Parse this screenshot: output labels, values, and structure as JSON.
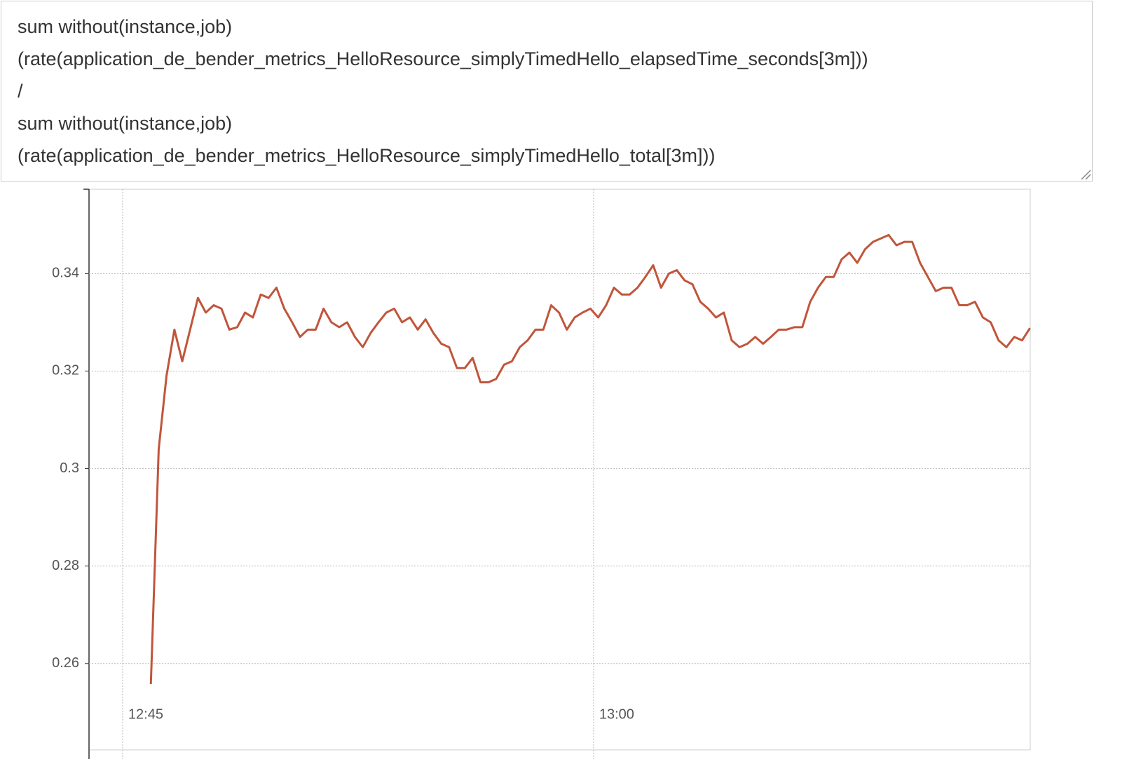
{
  "query_lines": [
    "sum without(instance,job)",
    "(rate(application_de_bender_metrics_HelloResource_simplyTimedHello_elapsedTime_seconds[3m]))",
    "/",
    "sum without(instance,job)",
    "(rate(application_de_bender_metrics_HelloResource_simplyTimedHello_total[3m]))"
  ],
  "chart_data": {
    "type": "line",
    "x": [
      765.9,
      766.15,
      766.4,
      766.65,
      766.9,
      767.15,
      767.4,
      767.65,
      767.9,
      768.15,
      768.4,
      768.65,
      768.9,
      769.15,
      769.4,
      769.65,
      769.9,
      770.15,
      770.4,
      770.65,
      770.9,
      771.15,
      771.4,
      771.65,
      771.9,
      772.15,
      772.4,
      772.65,
      772.9,
      773.15,
      773.4,
      773.65,
      773.9,
      774.15,
      774.4,
      774.65,
      774.9,
      775.15,
      775.4,
      775.65,
      775.9,
      776.15,
      776.4,
      776.65,
      776.9,
      777.15,
      777.4,
      777.65,
      777.9,
      778.15,
      778.4,
      778.65,
      778.9,
      779.15,
      779.4,
      779.65,
      779.9,
      780.15,
      780.4,
      780.65,
      780.9,
      781.15,
      781.4,
      781.65,
      781.9,
      782.15,
      782.4,
      782.65,
      782.9,
      783.15,
      783.4,
      783.65,
      783.9,
      784.15,
      784.4,
      784.65,
      784.9,
      785.15,
      785.4,
      785.65,
      785.9,
      786.15,
      786.4,
      786.65,
      786.9,
      787.15,
      787.4,
      787.65,
      787.9,
      788.15,
      788.4,
      788.65,
      788.9,
      789.15,
      789.4,
      789.65,
      789.9,
      790.15,
      790.4,
      790.65,
      790.9,
      791.15,
      791.4,
      791.65,
      791.9,
      792.15,
      792.4,
      792.65,
      792.9,
      793.15,
      793.4,
      793.65,
      793.9
    ],
    "series": [
      {
        "color": "#c1553b",
        "values": [
          0.2558,
          0.304,
          0.3191,
          0.3285,
          0.322,
          0.3285,
          0.335,
          0.332,
          0.3335,
          0.3328,
          0.3285,
          0.329,
          0.332,
          0.331,
          0.3357,
          0.335,
          0.3371,
          0.3328,
          0.33,
          0.327,
          0.3285,
          0.3285,
          0.3328,
          0.33,
          0.329,
          0.33,
          0.327,
          0.3249,
          0.3278,
          0.33,
          0.332,
          0.3328,
          0.33,
          0.331,
          0.3285,
          0.3306,
          0.3278,
          0.3256,
          0.3249,
          0.3206,
          0.3206,
          0.3227,
          0.3177,
          0.3177,
          0.3184,
          0.3213,
          0.322,
          0.3249,
          0.3263,
          0.3285,
          0.3285,
          0.3335,
          0.332,
          0.3285,
          0.331,
          0.332,
          0.3328,
          0.331,
          0.3335,
          0.3371,
          0.3357,
          0.3357,
          0.3371,
          0.3393,
          0.3417,
          0.3371,
          0.34,
          0.3407,
          0.3386,
          0.3378,
          0.3342,
          0.3328,
          0.331,
          0.332,
          0.3263,
          0.3249,
          0.3256,
          0.327,
          0.3256,
          0.327,
          0.3285,
          0.3285,
          0.329,
          0.329,
          0.3342,
          0.3371,
          0.3393,
          0.3393,
          0.3429,
          0.3443,
          0.3422,
          0.345,
          0.3465,
          0.3472,
          0.3479,
          0.3458,
          0.3465,
          0.3465,
          0.3422,
          0.3393,
          0.3364,
          0.3371,
          0.3371,
          0.3335,
          0.3335,
          0.3342,
          0.331,
          0.33,
          0.3263,
          0.3249,
          0.327,
          0.3263,
          0.3288
        ]
      }
    ],
    "xlim": [
      763.93,
      793.91
    ],
    "xticks": [
      {
        "value": 765,
        "label": "12:45"
      },
      {
        "value": 780,
        "label": "13:00"
      }
    ],
    "ylim": [
      0.2466,
      0.3573
    ],
    "yticks": [
      0.26,
      0.28,
      0.3,
      0.32,
      0.34
    ],
    "grid": true
  }
}
